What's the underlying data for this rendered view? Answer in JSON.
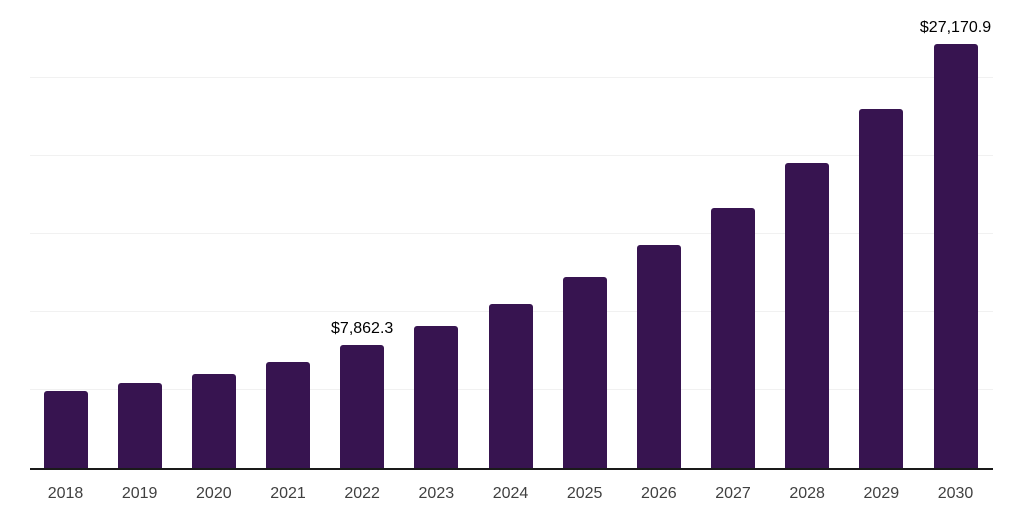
{
  "chart_data": {
    "type": "bar",
    "title": "",
    "xlabel": "",
    "ylabel": "",
    "categories": [
      "2018",
      "2019",
      "2020",
      "2021",
      "2022",
      "2023",
      "2024",
      "2025",
      "2026",
      "2027",
      "2028",
      "2029",
      "2030"
    ],
    "values": [
      4905.4,
      5436.0,
      6011.2,
      6824.1,
      7862.3,
      9126.0,
      10533.1,
      12234.3,
      14280.5,
      16672.2,
      19569.3,
      23022.0,
      27170.9
    ],
    "data_labels": {
      "2022": "$7,862.3",
      "2030": "$27,170.9"
    },
    "ylim": [
      0,
      30000
    ],
    "gridlines": {
      "orientation": "horizontal",
      "step": 5000,
      "values": [
        5000,
        10000,
        15000,
        20000,
        25000,
        30000
      ]
    },
    "y_tick_labels_visible": false,
    "legend": "none"
  },
  "style": {
    "bar_color": "#371450",
    "grid_color": "#f1f1f1",
    "axis_color": "#1a1a1a",
    "tick_label_color": "#404040",
    "data_label_color": "#000000",
    "background_color": "#ffffff"
  }
}
